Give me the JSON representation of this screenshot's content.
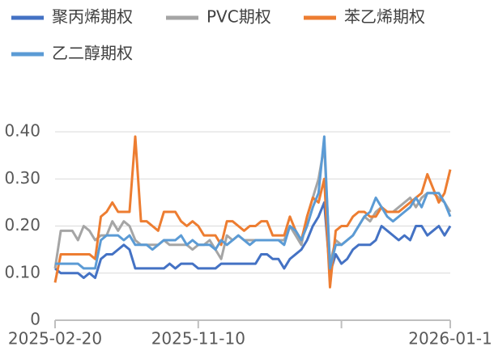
{
  "chart_data": {
    "type": "line",
    "categories": [
      "2025-02-20",
      null,
      null,
      null,
      null,
      null,
      null,
      null,
      null,
      null,
      null,
      null,
      null,
      null,
      null,
      null,
      null,
      null,
      null,
      null,
      null,
      null,
      null,
      null,
      null,
      "2025-11-10",
      null,
      null,
      null,
      null,
      null,
      null,
      null,
      null,
      null,
      null,
      null,
      null,
      null,
      null,
      null,
      null,
      null,
      null,
      null,
      null,
      null,
      null,
      null,
      null,
      null,
      null,
      null,
      null,
      null,
      null,
      null,
      null,
      null,
      null,
      null,
      null,
      null,
      null,
      null,
      null,
      null,
      null,
      null,
      "2026-01-1"
    ],
    "series": [
      {
        "name": "聚丙烯期权",
        "color": "#4472c4",
        "values": [
          0.11,
          0.1,
          0.1,
          0.1,
          0.1,
          0.09,
          0.1,
          0.09,
          0.13,
          0.14,
          0.14,
          0.15,
          0.16,
          0.15,
          0.11,
          0.11,
          0.11,
          0.11,
          0.11,
          0.11,
          0.12,
          0.11,
          0.12,
          0.12,
          0.12,
          0.11,
          0.11,
          0.11,
          0.11,
          0.12,
          0.12,
          0.12,
          0.12,
          0.12,
          0.12,
          0.12,
          0.14,
          0.14,
          0.13,
          0.13,
          0.11,
          0.13,
          0.14,
          0.15,
          0.17,
          0.2,
          0.22,
          0.25,
          0.1,
          0.14,
          0.12,
          0.13,
          0.15,
          0.16,
          0.16,
          0.16,
          0.17,
          0.2,
          0.19,
          0.18,
          0.17,
          0.18,
          0.17,
          0.2,
          0.2,
          0.18,
          0.19,
          0.2,
          0.18,
          0.2
        ]
      },
      {
        "name": "PVC期权",
        "color": "#a5a5a5",
        "values": [
          0.11,
          0.19,
          0.19,
          0.19,
          0.17,
          0.2,
          0.19,
          0.17,
          0.18,
          0.18,
          0.21,
          0.19,
          0.21,
          0.2,
          0.17,
          0.16,
          0.16,
          0.16,
          0.16,
          0.17,
          0.16,
          0.16,
          0.16,
          0.16,
          0.15,
          0.16,
          0.16,
          0.17,
          0.15,
          0.13,
          0.18,
          0.17,
          0.18,
          0.17,
          0.17,
          0.17,
          0.17,
          0.17,
          0.17,
          0.17,
          0.17,
          0.2,
          0.18,
          0.16,
          0.22,
          0.26,
          0.3,
          0.37,
          0.12,
          0.17,
          0.16,
          0.17,
          0.18,
          0.2,
          0.22,
          0.21,
          0.23,
          0.24,
          0.23,
          0.23,
          0.24,
          0.25,
          0.26,
          0.24,
          0.26,
          0.27,
          0.27,
          0.26,
          0.25,
          0.23
        ]
      },
      {
        "name": "苯乙烯期权",
        "color": "#ed7d31",
        "values": [
          0.08,
          0.14,
          0.14,
          0.14,
          0.14,
          0.14,
          0.14,
          0.13,
          0.22,
          0.23,
          0.25,
          0.23,
          0.23,
          0.23,
          0.39,
          0.21,
          0.21,
          0.2,
          0.19,
          0.23,
          0.23,
          0.23,
          0.21,
          0.2,
          0.21,
          0.2,
          0.18,
          0.18,
          0.18,
          0.16,
          0.21,
          0.21,
          0.2,
          0.19,
          0.2,
          0.2,
          0.21,
          0.21,
          0.18,
          0.18,
          0.18,
          0.22,
          0.19,
          0.17,
          0.22,
          0.26,
          0.25,
          0.3,
          0.07,
          0.19,
          0.2,
          0.2,
          0.22,
          0.23,
          0.23,
          0.22,
          0.22,
          0.24,
          0.23,
          0.23,
          0.23,
          0.24,
          0.25,
          0.26,
          0.27,
          0.31,
          0.28,
          0.25,
          0.27,
          0.32
        ]
      },
      {
        "name": "乙二醇期权",
        "color": "#5b9bd5",
        "values": [
          0.12,
          0.12,
          0.12,
          0.12,
          0.12,
          0.11,
          0.11,
          0.11,
          0.17,
          0.18,
          0.18,
          0.18,
          0.17,
          0.18,
          0.16,
          0.16,
          0.16,
          0.15,
          0.16,
          0.17,
          0.17,
          0.17,
          0.18,
          0.16,
          0.17,
          0.16,
          0.16,
          0.16,
          0.15,
          0.17,
          0.16,
          0.17,
          0.18,
          0.17,
          0.16,
          0.17,
          0.17,
          0.17,
          0.17,
          0.17,
          0.16,
          0.2,
          0.19,
          0.17,
          0.2,
          0.24,
          0.27,
          0.39,
          0.11,
          0.16,
          0.16,
          0.17,
          0.18,
          0.2,
          0.22,
          0.23,
          0.26,
          0.24,
          0.22,
          0.21,
          0.22,
          0.23,
          0.24,
          0.26,
          0.24,
          0.27,
          0.27,
          0.27,
          0.25,
          0.22
        ]
      }
    ],
    "ylim": [
      0,
      0.4
    ],
    "yticks": [
      0,
      {
        "value": 0.1,
        "label": "0.10"
      },
      {
        "value": 0.2,
        "label": "0.20"
      },
      {
        "value": 0.3,
        "label": "0.30"
      },
      {
        "value": 0.4,
        "label": "0.40"
      }
    ],
    "grid": true,
    "legend": "top"
  }
}
